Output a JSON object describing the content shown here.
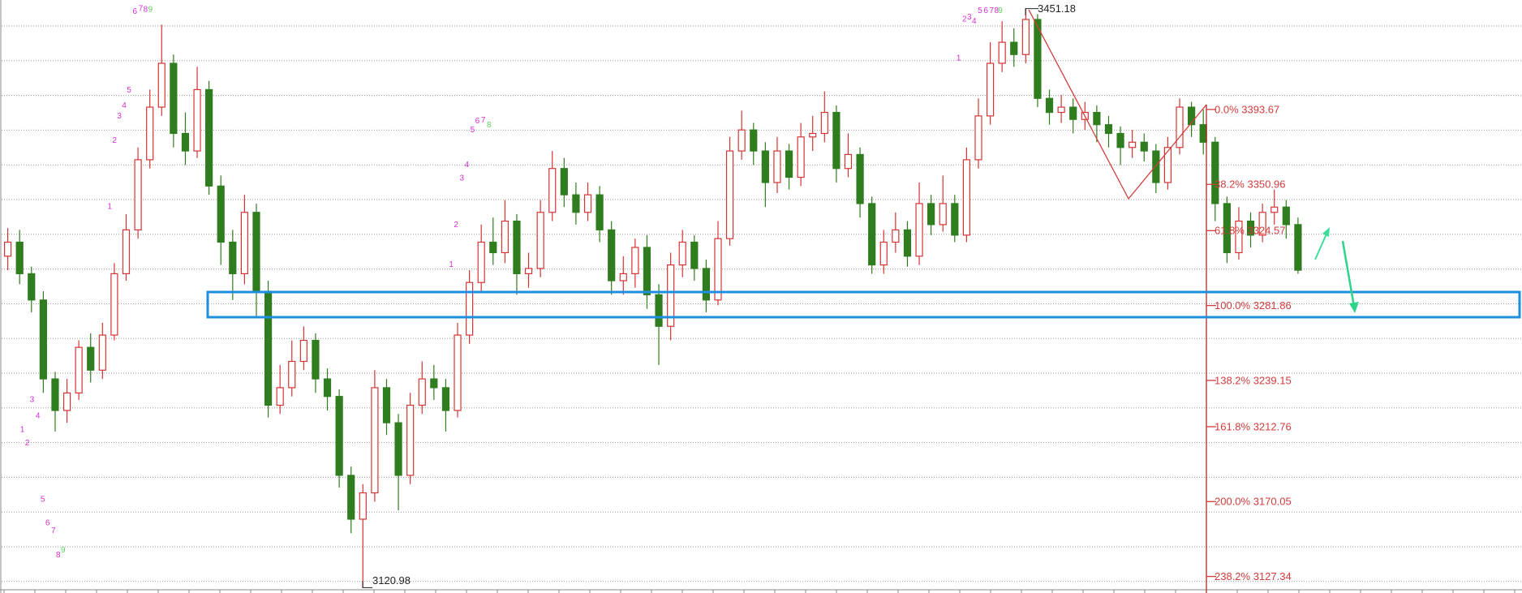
{
  "chart_data": {
    "type": "candlestick",
    "ylim": [
      3117.9,
      3456.1
    ],
    "up_color": "#d43434",
    "down_color": "#2f7d1f",
    "open": [
      3310,
      3318,
      3300,
      3285,
      3240,
      3222,
      3232,
      3258,
      3245,
      3265,
      3300,
      3325,
      3365,
      3395,
      3420,
      3380,
      3370,
      3405,
      3350,
      3318,
      3300,
      3335,
      3290,
      3225,
      3235,
      3250,
      3262,
      3240,
      3230,
      3185,
      3160,
      3175,
      3235,
      3215,
      3185,
      3225,
      3240,
      3235,
      3222,
      3265,
      3295,
      3318,
      3312,
      3330,
      3300,
      3303,
      3335,
      3360,
      3345,
      3335,
      3345,
      3325,
      3296,
      3300,
      3315,
      3288,
      3270,
      3305,
      3318,
      3303,
      3285,
      3320,
      3370,
      3382,
      3370,
      3352,
      3370,
      3355,
      3378,
      3380,
      3392,
      3360,
      3368,
      3340,
      3305,
      3318,
      3325,
      3310,
      3340,
      3328,
      3340,
      3322,
      3365,
      3390,
      3420,
      3432,
      3425,
      3445,
      3400,
      3392,
      3395,
      3388,
      3392,
      3385,
      3380,
      3372,
      3375,
      3370,
      3352,
      3372,
      3395,
      3385,
      3375,
      3340,
      3312,
      3330,
      3322,
      3335,
      3338,
      3328
    ],
    "high": [
      3326,
      3325,
      3304,
      3290,
      3244,
      3240,
      3262,
      3266,
      3272,
      3306,
      3334,
      3372,
      3405,
      3442,
      3425,
      3392,
      3418,
      3410,
      3356,
      3325,
      3345,
      3340,
      3296,
      3248,
      3262,
      3270,
      3266,
      3246,
      3234,
      3190,
      3180,
      3245,
      3240,
      3220,
      3232,
      3250,
      3248,
      3240,
      3272,
      3302,
      3328,
      3332,
      3342,
      3334,
      3312,
      3342,
      3370,
      3366,
      3352,
      3352,
      3350,
      3330,
      3310,
      3320,
      3322,
      3294,
      3312,
      3325,
      3322,
      3308,
      3330,
      3378,
      3393,
      3386,
      3375,
      3378,
      3374,
      3386,
      3390,
      3404,
      3396,
      3380,
      3372,
      3344,
      3325,
      3335,
      3330,
      3352,
      3345,
      3356,
      3345,
      3372,
      3400,
      3432,
      3444,
      3440,
      3451.18,
      3448,
      3405,
      3402,
      3400,
      3398,
      3396,
      3390,
      3384,
      3382,
      3380,
      3374,
      3378,
      3400,
      3398,
      3393.67,
      3378,
      3344,
      3338,
      3335,
      3340,
      3348,
      3342,
      3332
    ],
    "low": [
      3302,
      3294,
      3278,
      3232,
      3210,
      3215,
      3228,
      3238,
      3240,
      3262,
      3296,
      3320,
      3360,
      3390,
      3372,
      3362,
      3366,
      3345,
      3305,
      3285,
      3294,
      3275,
      3218,
      3220,
      3230,
      3245,
      3232,
      3222,
      3178,
      3152,
      3120.98,
      3170,
      3208,
      3165,
      3180,
      3220,
      3228,
      3210,
      3218,
      3260,
      3290,
      3305,
      3306,
      3288,
      3292,
      3298,
      3330,
      3338,
      3328,
      3330,
      3318,
      3288,
      3288,
      3292,
      3280,
      3248,
      3262,
      3298,
      3296,
      3278,
      3282,
      3316,
      3365,
      3362,
      3338,
      3346,
      3348,
      3350,
      3370,
      3375,
      3352,
      3355,
      3332,
      3300,
      3300,
      3312,
      3304,
      3305,
      3322,
      3324,
      3318,
      3318,
      3360,
      3385,
      3415,
      3418,
      3420,
      3395,
      3385,
      3386,
      3380,
      3382,
      3375,
      3372,
      3362,
      3366,
      3364,
      3346,
      3348,
      3368,
      3378,
      3368,
      3330,
      3306,
      3308,
      3315,
      3318,
      3328,
      3320,
      3300
    ],
    "close": [
      3318,
      3300,
      3285,
      3240,
      3222,
      3232,
      3258,
      3245,
      3265,
      3300,
      3325,
      3365,
      3395,
      3420,
      3380,
      3370,
      3405,
      3350,
      3318,
      3300,
      3335,
      3290,
      3225,
      3235,
      3250,
      3262,
      3240,
      3230,
      3185,
      3160,
      3175,
      3235,
      3215,
      3185,
      3225,
      3240,
      3235,
      3222,
      3265,
      3295,
      3318,
      3312,
      3330,
      3300,
      3303,
      3335,
      3360,
      3345,
      3335,
      3345,
      3325,
      3296,
      3300,
      3315,
      3288,
      3270,
      3305,
      3318,
      3303,
      3285,
      3320,
      3370,
      3382,
      3370,
      3352,
      3370,
      3355,
      3378,
      3380,
      3392,
      3360,
      3368,
      3340,
      3305,
      3318,
      3325,
      3310,
      3340,
      3328,
      3340,
      3322,
      3365,
      3390,
      3420,
      3432,
      3425,
      3445,
      3400,
      3392,
      3395,
      3388,
      3392,
      3385,
      3380,
      3372,
      3375,
      3370,
      3352,
      3372,
      3395,
      3385,
      3375,
      3340,
      3312,
      3330,
      3322,
      3335,
      3338,
      3328,
      3302
    ],
    "high_label": 3451.18,
    "low_label": 3120.98,
    "fib_color": "#d23c3c",
    "fib_levels": [
      {
        "value": 3393.67,
        "label": "0.0% 3393.67"
      },
      {
        "value": 3350.96,
        "label": "38.2% 3350.96"
      },
      {
        "value": 3324.57,
        "label": "61.8% 3324.57"
      },
      {
        "value": 3281.86,
        "label": "100.0% 3281.86"
      },
      {
        "value": 3239.15,
        "label": "138.2% 3239.15"
      },
      {
        "value": 3212.76,
        "label": "161.8% 3212.76"
      },
      {
        "value": 3170.05,
        "label": "200.0% 3170.05"
      },
      {
        "value": 3127.34,
        "label": "238.2% 3127.34"
      }
    ],
    "td_marks": [
      {
        "text": "6",
        "color": "#d62fd6"
      },
      {
        "text": "7",
        "color": "#d62fd6"
      },
      {
        "text": "8",
        "color": "#d62fd6"
      },
      {
        "text": "9",
        "color": "#5fd35f"
      },
      {
        "text": "5",
        "color": "#d62fd6"
      },
      {
        "text": "4",
        "color": "#d62fd6"
      },
      {
        "text": "3",
        "color": "#d62fd6"
      },
      {
        "text": "2",
        "color": "#d62fd6"
      },
      {
        "text": "1",
        "color": "#d62fd6"
      },
      {
        "text": "3",
        "color": "#d62fd6"
      },
      {
        "text": "4",
        "color": "#d62fd6"
      },
      {
        "text": "1",
        "color": "#d62fd6"
      },
      {
        "text": "2",
        "color": "#d62fd6"
      },
      {
        "text": "5",
        "color": "#d62fd6"
      },
      {
        "text": "6",
        "color": "#d62fd6"
      },
      {
        "text": "7",
        "color": "#d62fd6"
      },
      {
        "text": "8",
        "color": "#d62fd6"
      },
      {
        "text": "9",
        "color": "#5fd35f"
      },
      {
        "text": "5",
        "color": "#d62fd6"
      },
      {
        "text": "6",
        "color": "#d62fd6"
      },
      {
        "text": "7",
        "color": "#d62fd6"
      },
      {
        "text": "8",
        "color": "#5fd35f"
      },
      {
        "text": "4",
        "color": "#d62fd6"
      },
      {
        "text": "3",
        "color": "#d62fd6"
      },
      {
        "text": "2",
        "color": "#d62fd6"
      },
      {
        "text": "1",
        "color": "#d62fd6"
      },
      {
        "text": "2",
        "color": "#d62fd6"
      },
      {
        "text": "3",
        "color": "#d62fd6"
      },
      {
        "text": "4",
        "color": "#d62fd6"
      },
      {
        "text": "5",
        "color": "#d62fd6"
      },
      {
        "text": "6",
        "color": "#d62fd6"
      },
      {
        "text": "7",
        "color": "#d62fd6"
      },
      {
        "text": "8",
        "color": "#d62fd6"
      },
      {
        "text": "9",
        "color": "#5fd35f"
      },
      {
        "text": "1",
        "color": "#d62fd6"
      }
    ]
  }
}
